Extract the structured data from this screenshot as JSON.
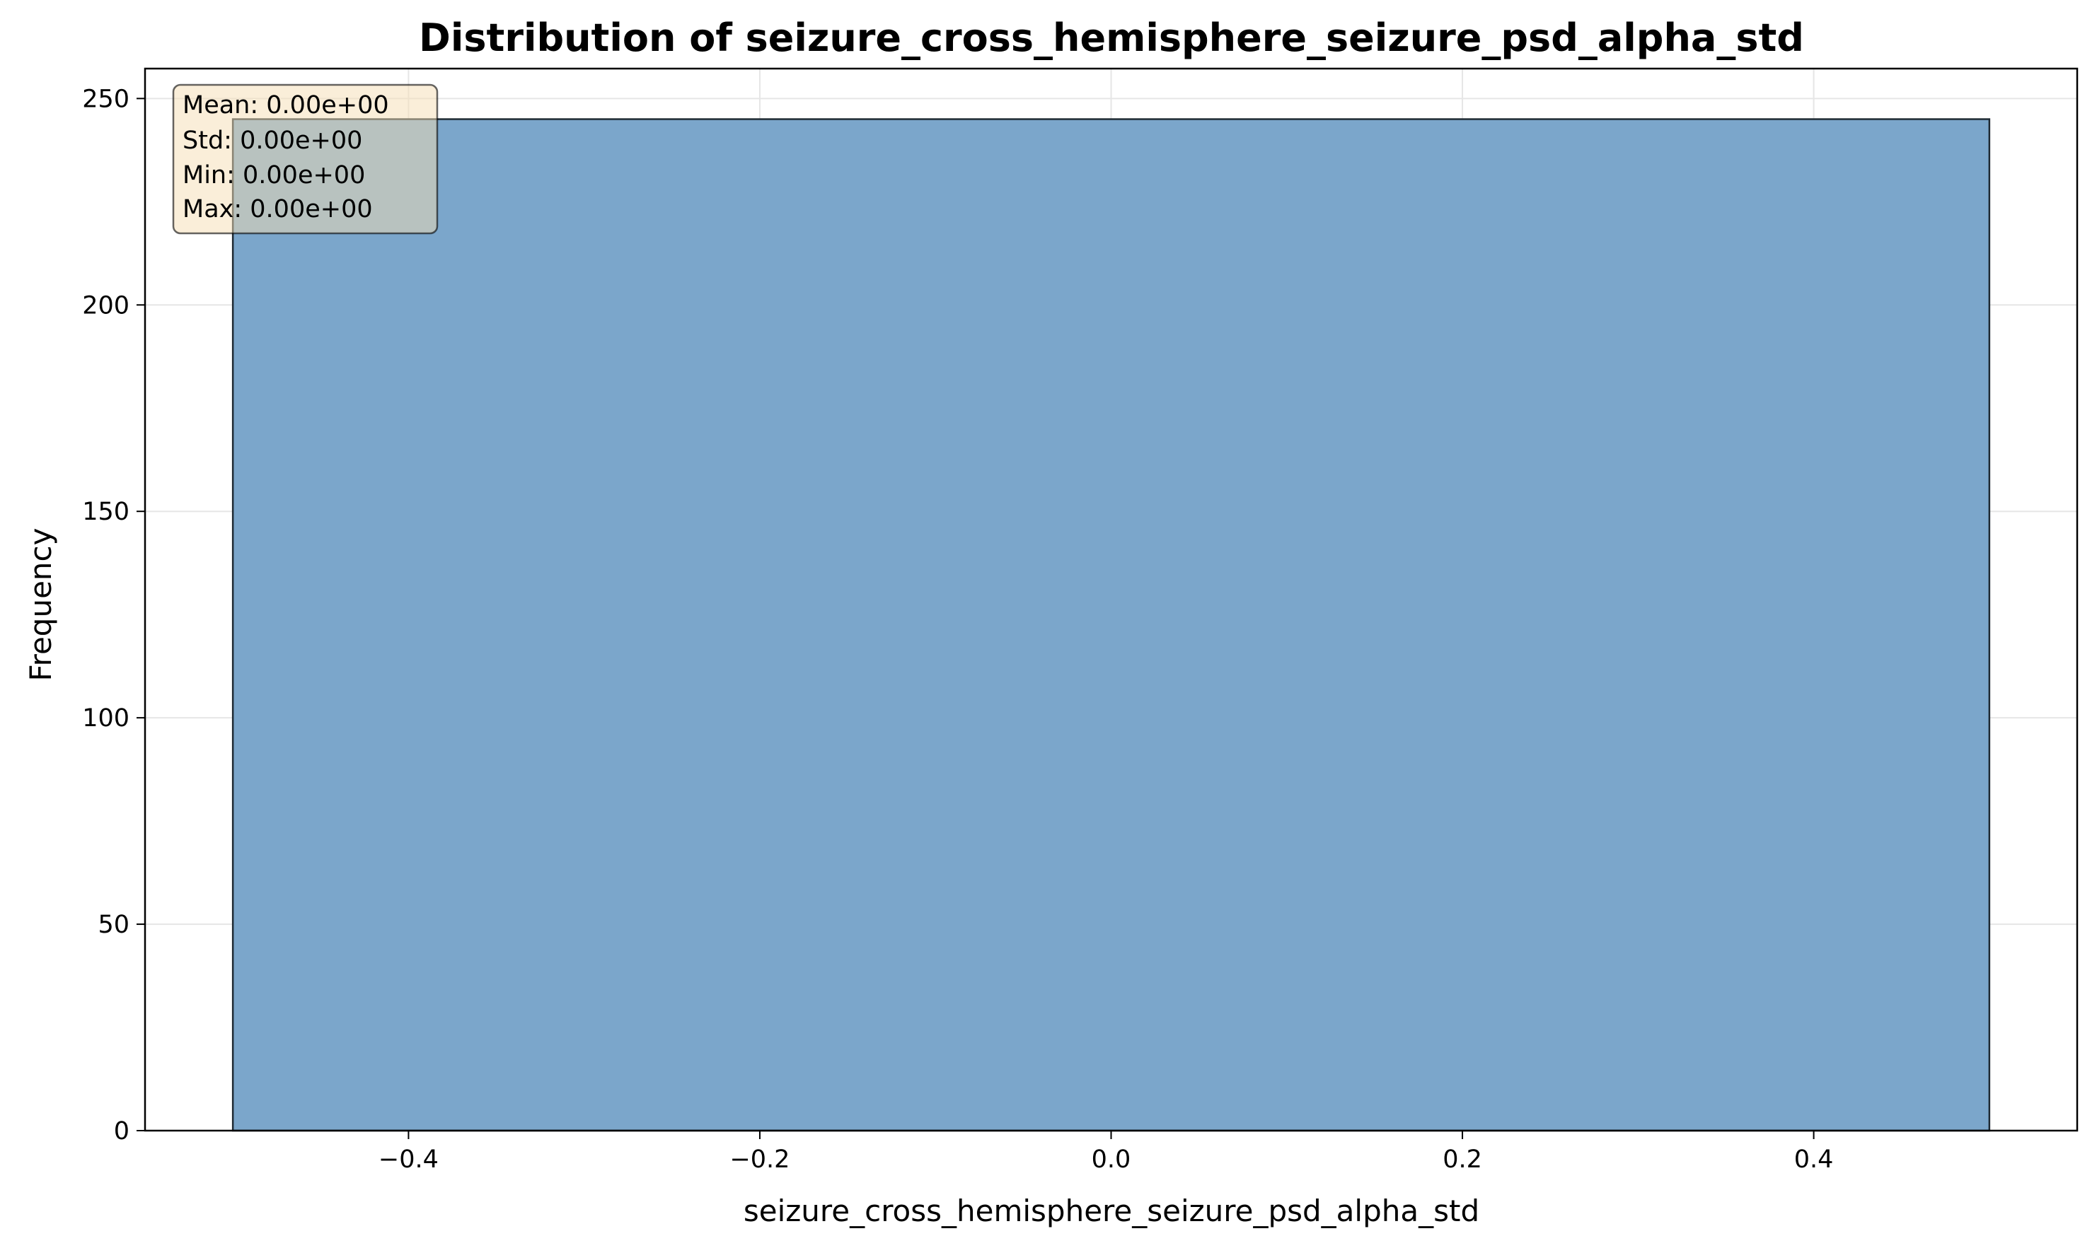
{
  "chart_data": {
    "type": "bar",
    "title": "Distribution of seizure_cross_hemisphere_seizure_psd_alpha_std",
    "xlabel": "seizure_cross_hemisphere_seizure_psd_alpha_std",
    "ylabel": "Frequency",
    "xlim": [
      -0.55,
      0.55
    ],
    "ylim": [
      0,
      257.25
    ],
    "xticks": [
      -0.4,
      -0.2,
      0.0,
      0.2,
      0.4
    ],
    "xtick_labels": [
      "−0.4",
      "−0.2",
      "0.0",
      "0.2",
      "0.4"
    ],
    "yticks": [
      0,
      50,
      100,
      150,
      200,
      250
    ],
    "ytick_labels": [
      "0",
      "50",
      "100",
      "150",
      "200",
      "250"
    ],
    "grid": true,
    "bins": [
      {
        "x0": -0.5,
        "x1": 0.5,
        "count": 245
      }
    ],
    "stats": {
      "mean": "Mean: 0.00e+00",
      "std": "Std: 0.00e+00",
      "min": "Min: 0.00e+00",
      "max": "Max: 0.00e+00"
    },
    "colors": {
      "bar_fill": "#7BA6CB",
      "bar_edge": "#1f2a33",
      "grid": "#e6e6e6",
      "stats_box_fill": "#F5DEB3",
      "stats_box_edge": "#555555"
    }
  }
}
